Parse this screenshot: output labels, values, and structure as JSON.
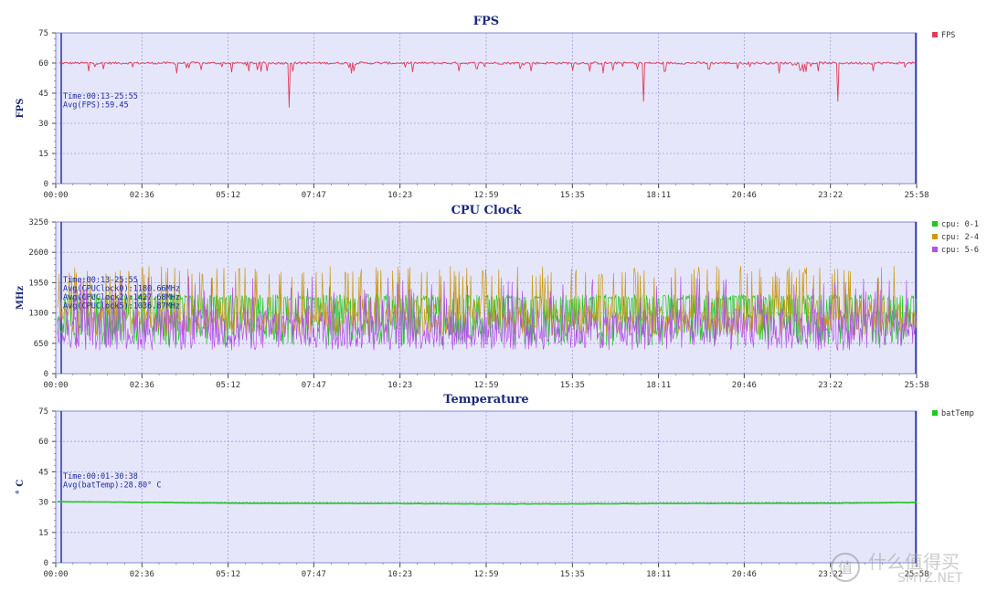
{
  "chart_data": [
    {
      "type": "line",
      "title": "FPS",
      "ylabel": "FPS",
      "ylim": [
        0,
        75
      ],
      "yticks": [
        "75",
        "60",
        "45",
        "30",
        "15",
        "0"
      ],
      "xlim_seconds": [
        0,
        1558
      ],
      "xticks": [
        "00:00",
        "02:36",
        "05:12",
        "07:47",
        "10:23",
        "12:59",
        "15:35",
        "18:11",
        "20:46",
        "23:22",
        "25:58"
      ],
      "grid": true,
      "legend_position": "right",
      "annotation": [
        "Time:00:13-25:55",
        "Avg(FPS):59.45"
      ],
      "series": [
        {
          "name": "FPS",
          "color": "#e03c5a",
          "baseline": 60,
          "dips": [
            {
              "time": "07:02",
              "value": 38
            },
            {
              "time": "17:44",
              "value": 41
            },
            {
              "time": "23:35",
              "value": 41
            },
            {
              "time": "01:00",
              "value": 56
            },
            {
              "time": "03:40",
              "value": 55
            },
            {
              "time": "05:50",
              "value": 56
            },
            {
              "time": "08:55",
              "value": 55
            },
            {
              "time": "12:10",
              "value": 56
            },
            {
              "time": "14:20",
              "value": 56
            },
            {
              "time": "16:30",
              "value": 55
            },
            {
              "time": "19:40",
              "value": 57
            },
            {
              "time": "21:50",
              "value": 55
            },
            {
              "time": "24:40",
              "value": 56
            }
          ]
        }
      ]
    },
    {
      "type": "line",
      "title": "CPU Clock",
      "ylabel": "MHz",
      "ylim": [
        0,
        3250
      ],
      "yticks": [
        "3250",
        "2600",
        "1950",
        "1300",
        "650",
        "0"
      ],
      "xlim_seconds": [
        0,
        1558
      ],
      "xticks": [
        "00:00",
        "02:36",
        "05:12",
        "07:47",
        "10:23",
        "12:59",
        "15:35",
        "18:11",
        "20:46",
        "23:22",
        "25:58"
      ],
      "grid": true,
      "legend_position": "right",
      "annotation": [
        "Time:00:13-25:55",
        "Avg(CPUClock0):1180.66MHz",
        "Avg(CPUClock2):1427.68MHz",
        "Avg(CPUClock5):1036.87MHz"
      ],
      "series": [
        {
          "name": "cpu: 0-1",
          "color": "#1ec81e",
          "low": 600,
          "high": 1700,
          "mean": 1180
        },
        {
          "name": "cpu: 2-4",
          "color": "#c89a14",
          "low": 800,
          "high": 2300,
          "mean": 1427
        },
        {
          "name": "cpu: 5-6",
          "color": "#b450e6",
          "low": 500,
          "high": 2000,
          "mean": 1036
        }
      ]
    },
    {
      "type": "line",
      "title": "Temperature",
      "ylabel": "° C",
      "ylim": [
        0,
        75
      ],
      "yticks": [
        "75",
        "60",
        "45",
        "30",
        "15",
        "0"
      ],
      "xlim_seconds": [
        0,
        1558
      ],
      "xticks": [
        "00:00",
        "02:36",
        "05:12",
        "07:47",
        "10:23",
        "12:59",
        "15:35",
        "18:11",
        "20:46",
        "23:22",
        "25:58"
      ],
      "grid": true,
      "legend_position": "right",
      "annotation": [
        "Time:00:01-30:38",
        "Avg(batTemp):28.80° C"
      ],
      "series": [
        {
          "name": "batTemp",
          "color": "#1ec81e",
          "points": [
            {
              "time": "00:00",
              "value": 30.2
            },
            {
              "time": "02:36",
              "value": 29.9
            },
            {
              "time": "05:12",
              "value": 29.5
            },
            {
              "time": "07:47",
              "value": 29.4
            },
            {
              "time": "10:23",
              "value": 29.3
            },
            {
              "time": "12:59",
              "value": 29.1
            },
            {
              "time": "15:35",
              "value": 29.1
            },
            {
              "time": "18:11",
              "value": 29.3
            },
            {
              "time": "20:46",
              "value": 29.4
            },
            {
              "time": "23:22",
              "value": 29.5
            },
            {
              "time": "25:58",
              "value": 29.8
            }
          ]
        }
      ]
    }
  ],
  "watermark": {
    "line1": "什么值得买",
    "line2": "SMYZ.NET"
  }
}
